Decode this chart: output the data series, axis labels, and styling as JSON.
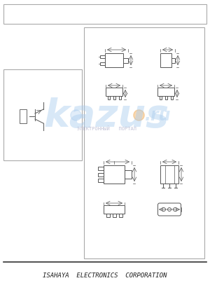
{
  "bg_color": "#e8e8e8",
  "page_bg": "#ffffff",
  "border_color": "#000000",
  "footer_text": "ISAHAYA  ELECTRONICS  CORPORATION",
  "footer_fontsize": 6.5,
  "watermark_text": "kazus",
  "watermark_sub": ".ru",
  "watermark_sub2": "ЭЛЕКТРОННЫЙ   ПОРТАЛ",
  "diagram_color": "#555555",
  "dim_color": "#777777",
  "panel_edge": "#aaaaaa",
  "wm_blue": "#aaccee",
  "wm_orange": "#f0a040"
}
